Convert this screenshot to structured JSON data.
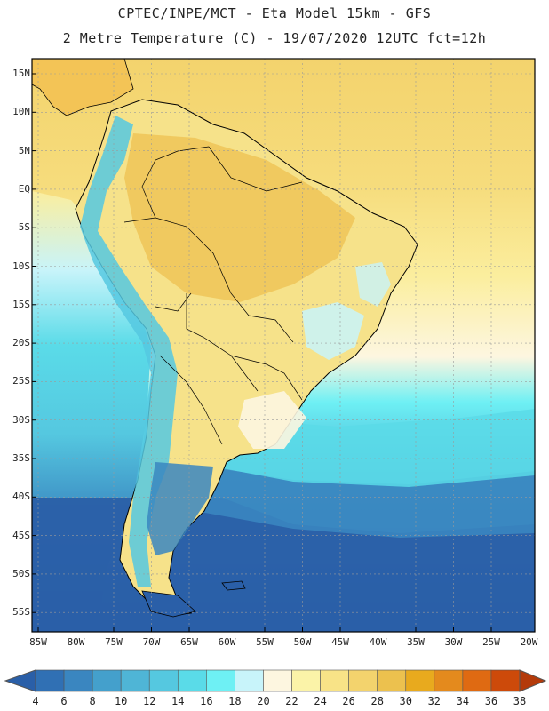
{
  "header": {
    "line1": "CPTEC/INPE/MCT -  Eta Model 15km - GFS",
    "line2": "2 Metre Temperature (C) - 19/07/2020 12UTC fct=12h"
  },
  "map": {
    "lat_labels": [
      "15N",
      "10N",
      "5N",
      "EQ",
      "5S",
      "10S",
      "15S",
      "20S",
      "25S",
      "30S",
      "35S",
      "40S",
      "45S",
      "50S",
      "55S"
    ],
    "lon_labels": [
      "85W",
      "80W",
      "75W",
      "70W",
      "65W",
      "60W",
      "55W",
      "50W",
      "45W",
      "40W",
      "35W",
      "30W",
      "25W",
      "20W"
    ]
  },
  "legend": {
    "labels": [
      "4",
      "6",
      "8",
      "10",
      "12",
      "14",
      "16",
      "18",
      "20",
      "22",
      "24",
      "26",
      "28",
      "30",
      "32",
      "34",
      "36",
      "38"
    ],
    "colors": [
      "#2a5fa8",
      "#3070b4",
      "#3a86c0",
      "#44a0cc",
      "#4fb5d6",
      "#55c8e0",
      "#5adbe8",
      "#6ef0f4",
      "#c8f4fa",
      "#fdf6e0",
      "#fbf3a8",
      "#f8e387",
      "#f3d36d",
      "#ecc14e",
      "#e8aa1e",
      "#e48a1d",
      "#df6a12",
      "#cd4a0a",
      "#b43a0a"
    ]
  }
}
